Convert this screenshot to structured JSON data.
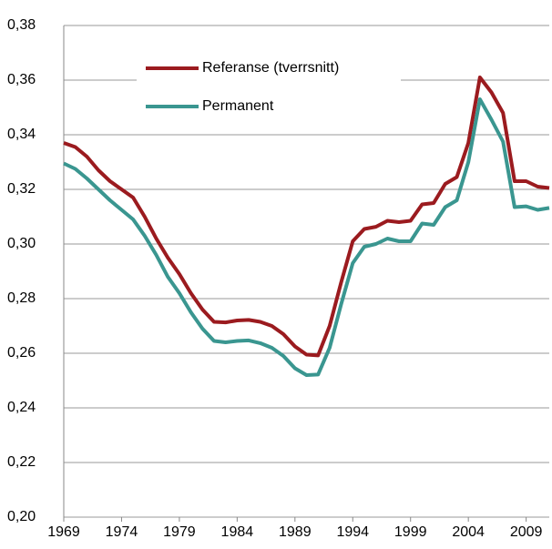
{
  "chart_data": {
    "type": "line",
    "x": [
      1969,
      1970,
      1971,
      1972,
      1973,
      1974,
      1975,
      1976,
      1977,
      1978,
      1979,
      1980,
      1981,
      1982,
      1983,
      1984,
      1985,
      1986,
      1987,
      1988,
      1989,
      1990,
      1991,
      1992,
      1993,
      1994,
      1995,
      1996,
      1997,
      1998,
      1999,
      2000,
      2001,
      2002,
      2003,
      2004,
      2005,
      2006,
      2007,
      2008,
      2009,
      2010,
      2011
    ],
    "series": [
      {
        "name": "Referanse (tverrsnitt)",
        "color": "#9b1b1f",
        "values": [
          0.337,
          0.3355,
          0.332,
          0.327,
          0.323,
          0.32,
          0.317,
          0.31,
          0.302,
          0.295,
          0.289,
          0.282,
          0.276,
          0.2715,
          0.2713,
          0.272,
          0.2722,
          0.2715,
          0.27,
          0.267,
          0.2625,
          0.2595,
          0.2592,
          0.27,
          0.286,
          0.301,
          0.3055,
          0.3063,
          0.3085,
          0.308,
          0.3085,
          0.3145,
          0.315,
          0.322,
          0.3245,
          0.337,
          0.361,
          0.3555,
          0.348,
          0.323,
          0.323,
          0.321,
          0.3205
        ]
      },
      {
        "name": "Permanent",
        "color": "#3a9690",
        "values": [
          0.3295,
          0.3275,
          0.324,
          0.32,
          0.316,
          0.3125,
          0.309,
          0.303,
          0.296,
          0.288,
          0.282,
          0.275,
          0.269,
          0.2645,
          0.264,
          0.2645,
          0.2647,
          0.2637,
          0.262,
          0.259,
          0.2545,
          0.252,
          0.2522,
          0.262,
          0.278,
          0.293,
          0.299,
          0.3,
          0.302,
          0.301,
          0.301,
          0.3075,
          0.307,
          0.3135,
          0.316,
          0.33,
          0.353,
          0.3455,
          0.3375,
          0.3135,
          0.3138,
          0.3125,
          0.3132
        ]
      }
    ],
    "xlim": [
      1969,
      2011
    ],
    "xticks": [
      1969,
      1974,
      1979,
      1984,
      1989,
      1994,
      1999,
      2004,
      2009
    ],
    "ylim": [
      0.2,
      0.38
    ],
    "yticks": [
      {
        "value": 0.2,
        "label": "0,20"
      },
      {
        "value": 0.22,
        "label": "0,22"
      },
      {
        "value": 0.24,
        "label": "0,24"
      },
      {
        "value": 0.26,
        "label": "0,26"
      },
      {
        "value": 0.28,
        "label": "0,28"
      },
      {
        "value": 0.3,
        "label": "0,30"
      },
      {
        "value": 0.32,
        "label": "0,32"
      },
      {
        "value": 0.34,
        "label": "0,34"
      },
      {
        "value": 0.36,
        "label": "0,36"
      },
      {
        "value": 0.38,
        "label": "0,38"
      }
    ],
    "grid": true
  }
}
